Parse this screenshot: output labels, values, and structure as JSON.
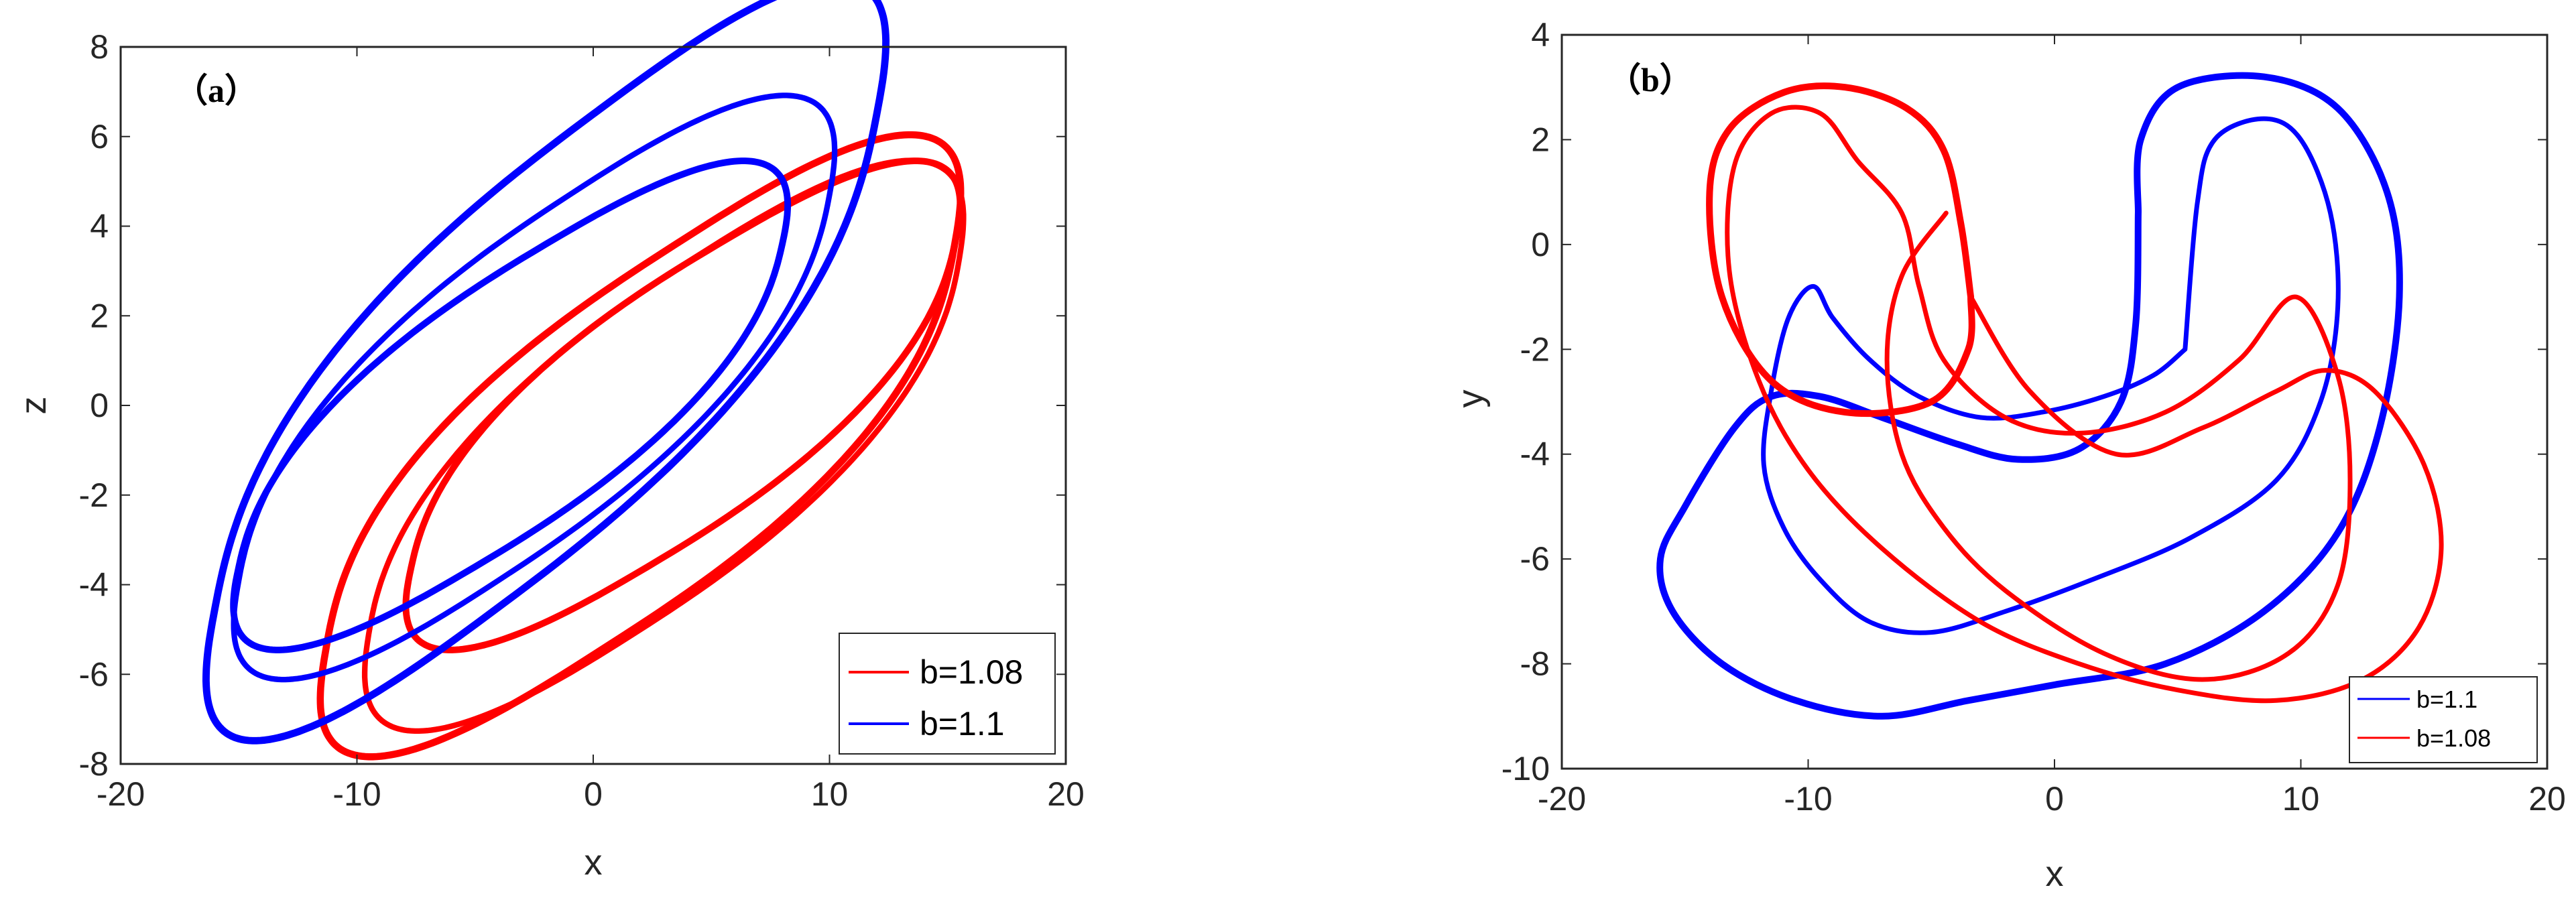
{
  "chart_data": [
    {
      "type": "line",
      "panel_label": "（a）",
      "title": "",
      "xlabel": "x",
      "ylabel": "z",
      "xlim": [
        -20,
        20
      ],
      "ylim": [
        -8,
        8
      ],
      "xticks": [
        -20,
        -10,
        0,
        10,
        20
      ],
      "yticks": [
        -8,
        -6,
        -4,
        -2,
        0,
        2,
        4,
        6,
        8
      ],
      "grid": false,
      "legend": "bottom-right",
      "series": [
        {
          "name": "b=1.08",
          "color": "#ff0000",
          "loops": [
            {
              "cx": 3.8,
              "cy": 0.0,
              "ax": 11.5,
              "ay": 3.6,
              "bx": 1.5,
              "by": 3.6,
              "r": 0.8,
              "t": 3.1
            },
            {
              "cx": 2.0,
              "cy": -0.9,
              "ax": 13.3,
              "ay": 4.5,
              "bx": 1.5,
              "by": 4.5,
              "r": 0.75,
              "t": 3.3
            },
            {
              "cx": 3.0,
              "cy": -0.9,
              "ax": 12.5,
              "ay": 4.2,
              "bx": 1.3,
              "by": 4.2,
              "r": 0.8,
              "t": 2.6
            }
          ]
        },
        {
          "name": "b=1.1",
          "color": "#0000ff",
          "loops": [
            {
              "cx": -2.0,
              "cy": 1.0,
              "ax": 14.0,
              "ay": 5.5,
              "bx": 2.0,
              "by": 5.5,
              "r": 0.75,
              "t": 3.4
            },
            {
              "cx": -3.5,
              "cy": 0.0,
              "ax": 11.5,
              "ay": 3.6,
              "bx": 1.5,
              "by": 3.6,
              "r": 0.8,
              "t": 3.1
            },
            {
              "cx": -2.5,
              "cy": 0.4,
              "ax": 12.5,
              "ay": 4.3,
              "bx": 1.5,
              "by": 4.3,
              "r": 0.8,
              "t": 2.6
            }
          ]
        }
      ]
    },
    {
      "type": "line",
      "panel_label": "（b）",
      "title": "",
      "xlabel": "x",
      "ylabel": "y",
      "xlim": [
        -20,
        20
      ],
      "ylim": [
        -10,
        4
      ],
      "xticks": [
        -20,
        -10,
        0,
        10,
        20
      ],
      "yticks": [
        -10,
        -8,
        -6,
        -4,
        -2,
        0,
        2,
        4
      ],
      "grid": false,
      "legend": "bottom-right",
      "series": [
        {
          "name": "b=1.1",
          "color": "#0000ff",
          "paths": [
            [
              [
                3.4,
                0.6
              ],
              [
                3.5,
                2.0
              ],
              [
                5.0,
                3.0
              ],
              [
                8.5,
                3.2
              ],
              [
                11.5,
                2.6
              ],
              [
                13.5,
                1.0
              ],
              [
                14.0,
                -1.0
              ],
              [
                13.2,
                -3.5
              ],
              [
                11.5,
                -5.5
              ],
              [
                8.5,
                -7.0
              ],
              [
                4.5,
                -8.0
              ],
              [
                0.0,
                -8.4
              ],
              [
                -3.5,
                -8.7
              ],
              [
                -7.0,
                -9.0
              ],
              [
                -10.5,
                -8.7
              ],
              [
                -13.5,
                -8.0
              ],
              [
                -15.5,
                -7.0
              ],
              [
                -16.0,
                -6.0
              ],
              [
                -15.0,
                -5.0
              ],
              [
                -13.0,
                -3.5
              ],
              [
                -11.5,
                -2.9
              ],
              [
                -9.5,
                -2.9
              ],
              [
                -7.0,
                -3.3
              ],
              [
                -4.0,
                -3.8
              ],
              [
                -1.5,
                -4.1
              ],
              [
                1.0,
                -3.9
              ],
              [
                2.7,
                -3.0
              ],
              [
                3.3,
                -1.5
              ],
              [
                3.4,
                0.6
              ]
            ],
            [
              [
                5.3,
                -2.0
              ],
              [
                5.8,
                0.8
              ],
              [
                6.5,
                2.0
              ],
              [
                8.5,
                2.4
              ],
              [
                10.0,
                2.0
              ],
              [
                11.2,
                0.6
              ],
              [
                11.5,
                -1.2
              ],
              [
                10.8,
                -3.0
              ],
              [
                9.0,
                -4.5
              ],
              [
                5.5,
                -5.6
              ],
              [
                1.5,
                -6.4
              ],
              [
                -2.0,
                -7.0
              ],
              [
                -5.0,
                -7.4
              ],
              [
                -7.5,
                -7.2
              ],
              [
                -9.5,
                -6.4
              ],
              [
                -11.0,
                -5.4
              ],
              [
                -11.8,
                -4.2
              ],
              [
                -11.5,
                -2.8
              ],
              [
                -10.8,
                -1.4
              ],
              [
                -9.8,
                -0.8
              ],
              [
                -9.0,
                -1.4
              ],
              [
                -7.5,
                -2.2
              ],
              [
                -5.5,
                -2.9
              ],
              [
                -3.0,
                -3.3
              ],
              [
                -0.5,
                -3.2
              ],
              [
                2.0,
                -2.9
              ],
              [
                4.0,
                -2.5
              ],
              [
                5.3,
                -2.0
              ]
            ]
          ]
        },
        {
          "name": "b=1.08",
          "color": "#ff0000",
          "paths": [
            [
              [
                -3.4,
                -1.0
              ],
              [
                -3.5,
                -2.0
              ],
              [
                -5.0,
                -3.0
              ],
              [
                -8.5,
                -3.2
              ],
              [
                -11.5,
                -2.6
              ],
              [
                -13.5,
                -1.0
              ],
              [
                -14.0,
                1.0
              ],
              [
                -13.2,
                2.2
              ],
              [
                -11.0,
                2.9
              ],
              [
                -8.5,
                3.0
              ],
              [
                -6.0,
                2.6
              ],
              [
                -4.5,
                1.8
              ],
              [
                -3.8,
                0.4
              ],
              [
                -3.4,
                -1.0
              ]
            ],
            [
              [
                -3.4,
                -1.0
              ],
              [
                -1.0,
                -2.8
              ],
              [
                2.5,
                -4.0
              ],
              [
                6.0,
                -3.5
              ],
              [
                9.0,
                -2.8
              ],
              [
                11.0,
                -2.4
              ],
              [
                13.0,
                -2.8
              ],
              [
                15.0,
                -4.2
              ],
              [
                15.7,
                -5.8
              ],
              [
                14.8,
                -7.3
              ],
              [
                12.5,
                -8.3
              ],
              [
                9.0,
                -8.7
              ],
              [
                5.0,
                -8.5
              ],
              [
                1.0,
                -8.0
              ],
              [
                -3.0,
                -7.2
              ],
              [
                -7.0,
                -5.8
              ],
              [
                -10.0,
                -4.3
              ],
              [
                -12.0,
                -2.6
              ],
              [
                -13.2,
                -0.5
              ],
              [
                -13.0,
                1.5
              ],
              [
                -11.5,
                2.5
              ],
              [
                -9.5,
                2.5
              ],
              [
                -8.0,
                1.6
              ],
              [
                -6.2,
                0.6
              ],
              [
                -5.5,
                -0.8
              ],
              [
                -4.5,
                -2.2
              ],
              [
                -2.0,
                -3.3
              ],
              [
                1.0,
                -3.6
              ],
              [
                4.5,
                -3.2
              ],
              [
                7.5,
                -2.2
              ],
              [
                9.8,
                -1.0
              ],
              [
                11.5,
                -2.5
              ],
              [
                12.0,
                -4.5
              ],
              [
                11.5,
                -6.5
              ],
              [
                9.5,
                -7.8
              ],
              [
                6.0,
                -8.3
              ],
              [
                2.0,
                -7.8
              ],
              [
                -2.0,
                -6.6
              ],
              [
                -4.5,
                -5.4
              ],
              [
                -6.2,
                -4.0
              ],
              [
                -6.8,
                -2.2
              ],
              [
                -6.2,
                -0.6
              ],
              [
                -4.4,
                0.6
              ]
            ]
          ]
        }
      ]
    }
  ]
}
